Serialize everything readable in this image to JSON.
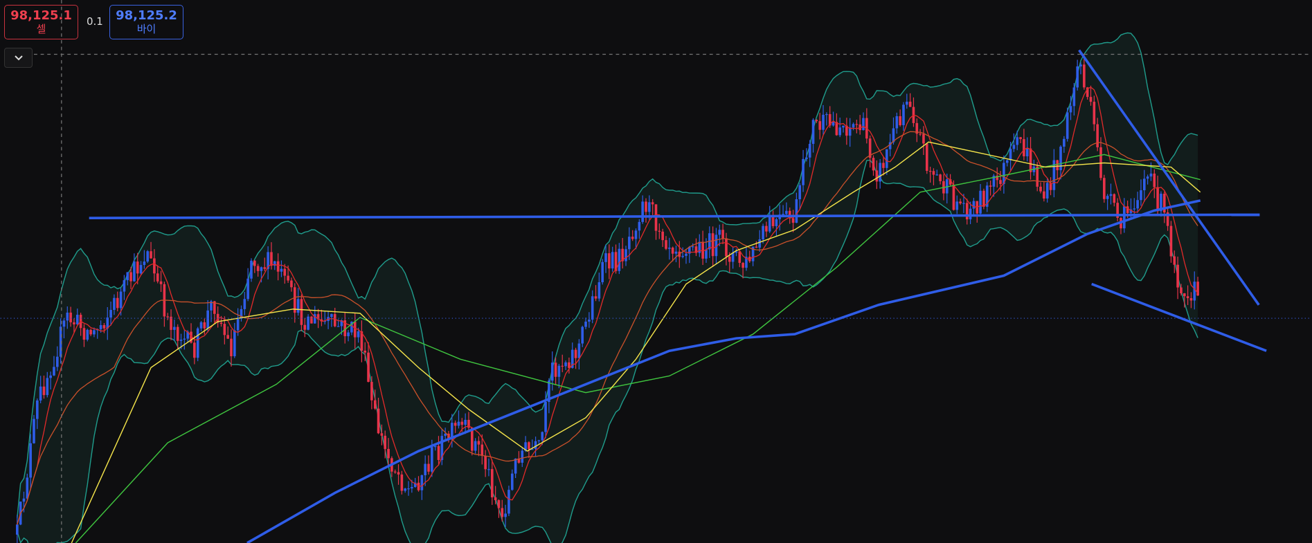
{
  "sell": {
    "price": "98,125.1",
    "label": "셀"
  },
  "spread": "0.1",
  "buy": {
    "price": "98,125.2",
    "label": "바이"
  }
}
